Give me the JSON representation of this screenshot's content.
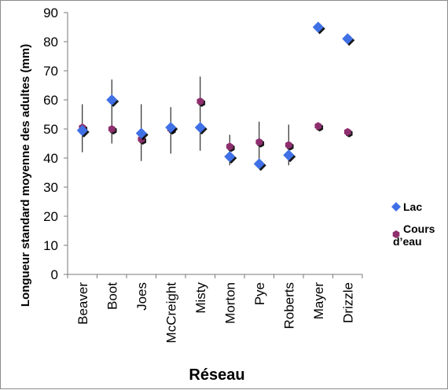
{
  "chart_data": {
    "type": "scatter",
    "title": "",
    "xlabel": "Réseau",
    "ylabel": "Longueur standard moyenne des adultes (mm)",
    "ylim": [
      0,
      90
    ],
    "yticks": [
      0,
      10,
      20,
      30,
      40,
      50,
      60,
      70,
      80,
      90
    ],
    "grid": false,
    "legend_position": "right",
    "categories": [
      "Beaver",
      "Boot",
      "Joes",
      "McCreight",
      "Misty",
      "Morton",
      "Pye",
      "Roberts",
      "Mayer",
      "Drizzle"
    ],
    "series": [
      {
        "name": "Lac",
        "marker": "diamond",
        "color": "#3f6fe6",
        "values": [
          49.5,
          60,
          48.5,
          50.5,
          50.5,
          40.5,
          38,
          41,
          85,
          81
        ]
      },
      {
        "name": "Cours d’eau",
        "marker": "hexagon",
        "color": "#8e2f6e",
        "values": [
          50.5,
          50,
          46.5,
          50,
          59.5,
          44,
          45.5,
          44.5,
          51,
          49
        ],
        "error_bars": [
          [
            42,
            58.5
          ],
          [
            45,
            67
          ],
          [
            39,
            58.5
          ],
          [
            41.5,
            57.5
          ],
          [
            42.5,
            68
          ],
          [
            37.5,
            48
          ],
          [
            37.5,
            52.5
          ],
          [
            37.5,
            51.5
          ],
          null,
          null
        ]
      }
    ]
  }
}
